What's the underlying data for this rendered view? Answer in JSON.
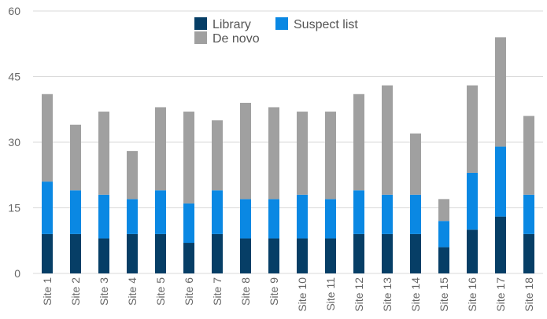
{
  "chart_data": {
    "type": "bar",
    "stacked": true,
    "title": "",
    "xlabel": "",
    "ylabel": "",
    "ylim": [
      0,
      60
    ],
    "yticks": [
      0,
      15,
      30,
      45,
      60
    ],
    "grid": true,
    "legend_position": "top",
    "categories": [
      "Site 1",
      "Site 2",
      "Site 3",
      "Site 4",
      "Site 5",
      "Site 6",
      "Site 7",
      "Site 8",
      "Site 9",
      "Site 10",
      "Site 11",
      "Site 12",
      "Site 13",
      "Site 14",
      "Site 15",
      "Site 16",
      "Site 17",
      "Site 18"
    ],
    "series": [
      {
        "name": "Library",
        "color": "#063e66",
        "values": [
          9,
          9,
          8,
          9,
          9,
          7,
          9,
          8,
          8,
          8,
          8,
          9,
          9,
          9,
          6,
          10,
          13,
          9
        ]
      },
      {
        "name": "Suspect list",
        "color": "#0a88e3",
        "values": [
          12,
          10,
          10,
          8,
          10,
          9,
          10,
          9,
          9,
          10,
          9,
          10,
          9,
          9,
          6,
          13,
          16,
          9
        ]
      },
      {
        "name": "De novo",
        "color": "#a0a0a0",
        "values": [
          20,
          15,
          19,
          11,
          19,
          21,
          16,
          22,
          21,
          19,
          20,
          22,
          25,
          14,
          5,
          20,
          25,
          18
        ]
      }
    ]
  }
}
